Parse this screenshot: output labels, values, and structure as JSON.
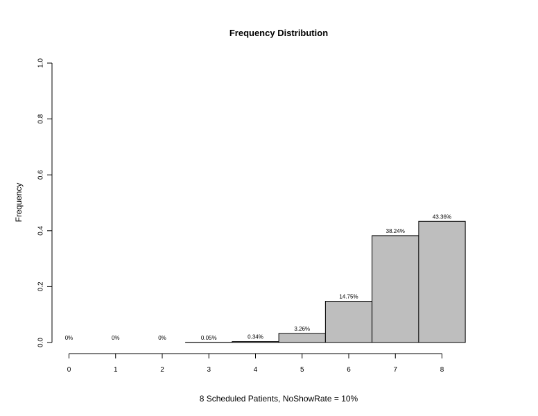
{
  "chart_data": {
    "type": "bar",
    "title": "Frequency Distribution",
    "xlabel": "8 Scheduled Patients,  NoShowRate = 10%",
    "ylabel": "Frequency",
    "categories": [
      "0",
      "1",
      "2",
      "3",
      "4",
      "5",
      "6",
      "7",
      "8"
    ],
    "values": [
      0,
      0,
      0,
      0.0005,
      0.0034,
      0.0326,
      0.1475,
      0.3824,
      0.4336
    ],
    "data_labels": [
      "0%",
      "0%",
      "0%",
      "0.05%",
      "0.34%",
      "3.26%",
      "14.75%",
      "38.24%",
      "43.36%"
    ],
    "ylim": [
      0,
      1
    ],
    "yticks": [
      "0.0",
      "0.2",
      "0.4",
      "0.6",
      "0.8",
      "1.0"
    ],
    "bar_color": "#bebebe",
    "grid": false,
    "legend": "none"
  }
}
